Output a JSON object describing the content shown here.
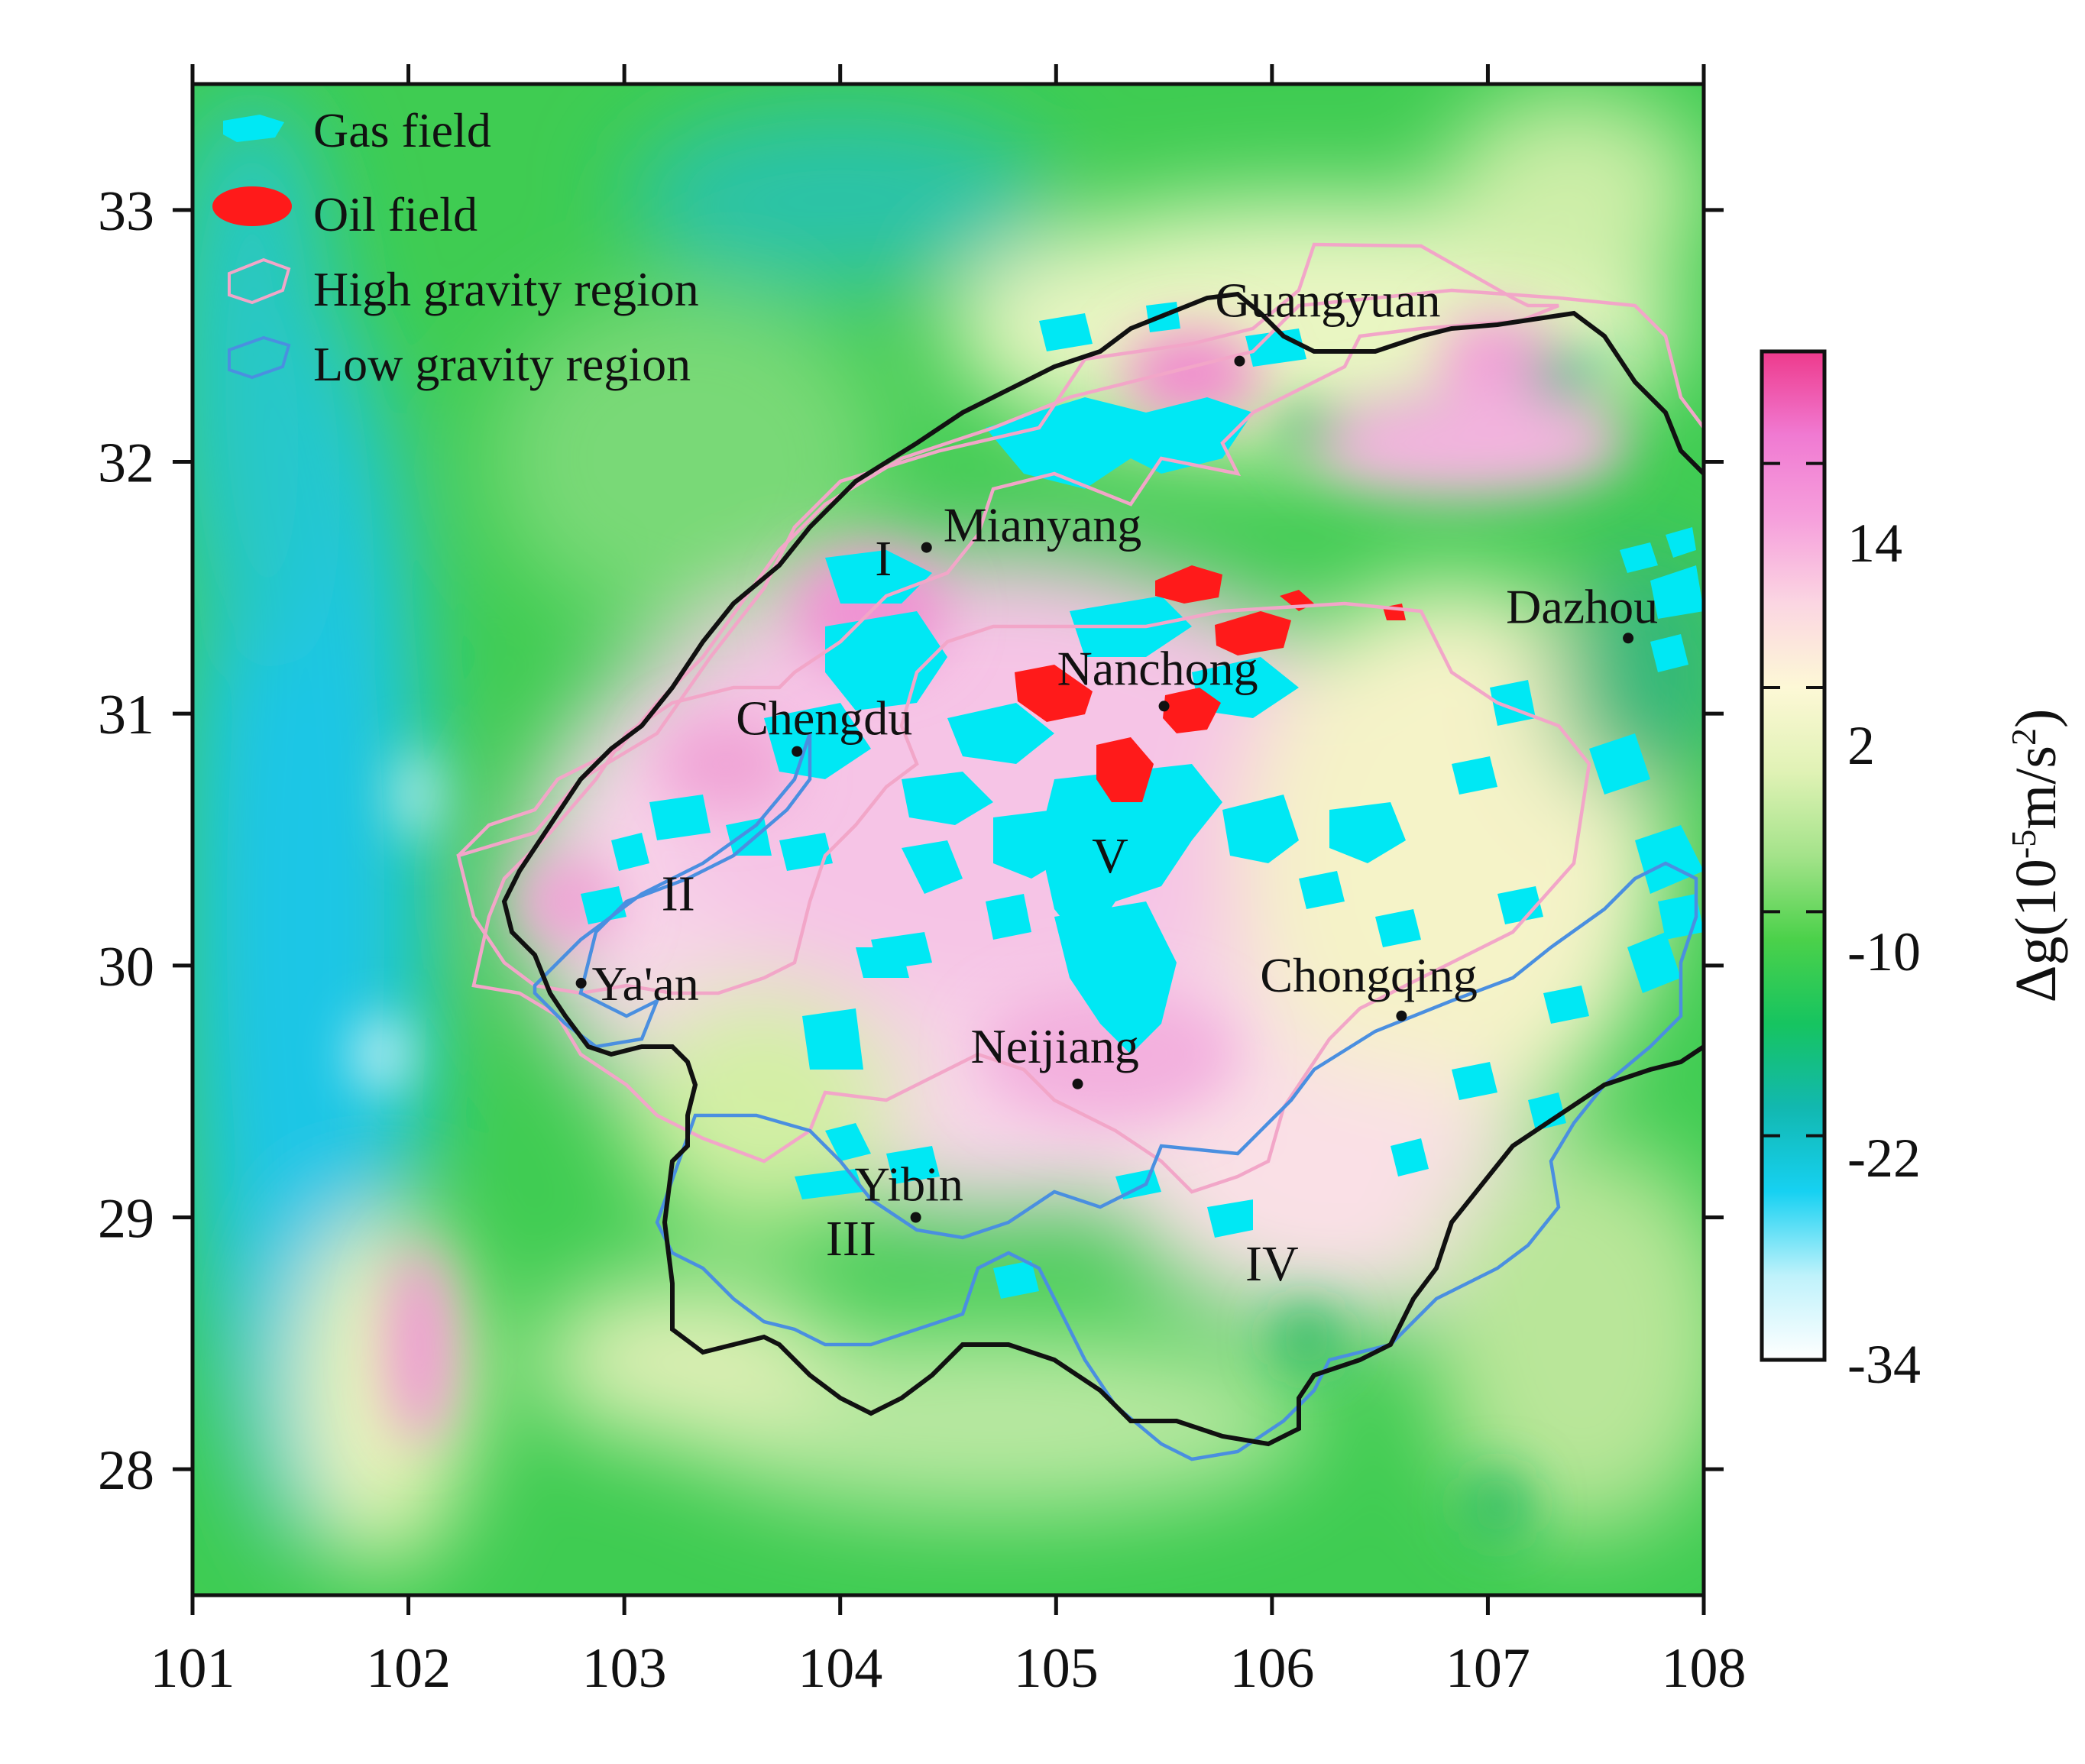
{
  "chart_data": {
    "type": "map",
    "x_axis": {
      "ticks": [
        "101",
        "102",
        "103",
        "104",
        "105",
        "106",
        "107",
        "108"
      ],
      "range": [
        101,
        108
      ]
    },
    "y_axis": {
      "ticks": [
        "33",
        "32",
        "31",
        "30",
        "29",
        "28"
      ],
      "range": [
        27.5,
        33.5
      ]
    },
    "legend": [
      {
        "label": "Gas field",
        "color": "#00e5f2"
      },
      {
        "label": "Oil field",
        "color": "#ff1a1a"
      },
      {
        "label": "High gravity region",
        "color": "#f2a6c8"
      },
      {
        "label": "Low gravity region",
        "color": "#4a8fe0"
      }
    ],
    "cities": [
      {
        "name": "Guangyuan",
        "lon": 105.85,
        "lat": 32.4
      },
      {
        "name": "Mianyang",
        "lon": 104.4,
        "lat": 31.66
      },
      {
        "name": "Dazhou",
        "lon": 107.65,
        "lat": 31.3
      },
      {
        "name": "Nanchong",
        "lon": 105.5,
        "lat": 31.03
      },
      {
        "name": "Chengdu",
        "lon": 103.8,
        "lat": 30.85
      },
      {
        "name": "Ya'an",
        "lon": 102.8,
        "lat": 29.93
      },
      {
        "name": "Chongqing",
        "lon": 106.6,
        "lat": 29.8
      },
      {
        "name": "Neijiang",
        "lon": 105.1,
        "lat": 29.53
      },
      {
        "name": "Yibin",
        "lon": 104.35,
        "lat": 29.0
      }
    ],
    "regions": [
      {
        "label": "I",
        "lon": 104.2,
        "lat": 31.55
      },
      {
        "label": "II",
        "lon": 103.25,
        "lat": 30.22
      },
      {
        "label": "III",
        "lon": 104.05,
        "lat": 28.85
      },
      {
        "label": "IV",
        "lon": 106.0,
        "lat": 28.75
      },
      {
        "label": "V",
        "lon": 105.25,
        "lat": 30.37
      }
    ],
    "colorbar": {
      "title_prefix": "Δg(10",
      "title_exp": "-5",
      "title_mid": "m/s",
      "title_exp2": "2",
      "title_suffix": ")",
      "ticks": [
        "14",
        "2",
        "-10",
        "-22",
        "-34"
      ],
      "range": [
        -34,
        20
      ],
      "stops": [
        "#ffffff",
        "#bff2fb",
        "#16d1f2",
        "#12b8b0",
        "#16c460",
        "#4bd14a",
        "#a4e38a",
        "#e0f2b5",
        "#fdf8d6",
        "#fbd6e2",
        "#f6a0dc",
        "#f07ad2",
        "#ee3a8c"
      ]
    }
  }
}
